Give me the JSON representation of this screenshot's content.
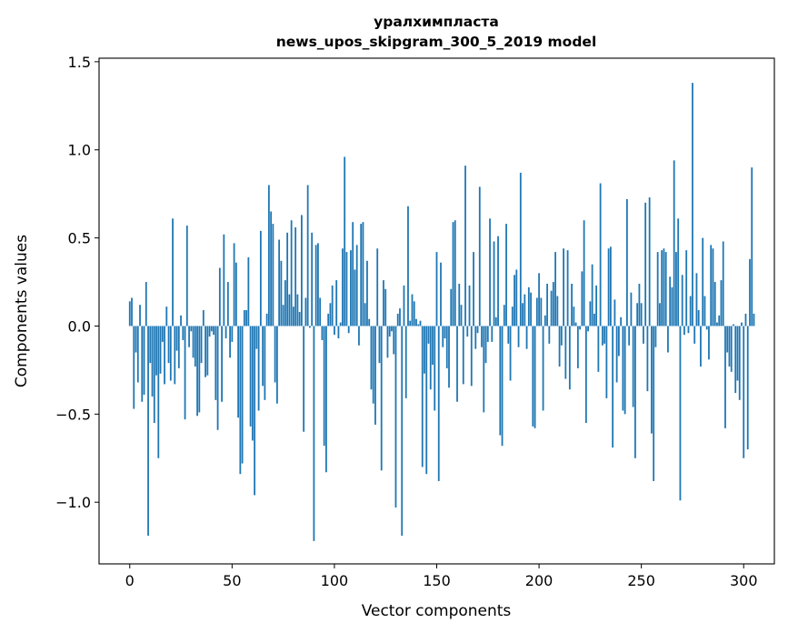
{
  "chart_data": {
    "type": "bar",
    "title_line1": "уралхимпласта",
    "title_line2": "news_upos_skipgram_300_5_2019 model",
    "xlabel": "Vector components",
    "ylabel": "Components values",
    "xlim": [
      -15,
      315
    ],
    "ylim": [
      -1.35,
      1.52
    ],
    "x_ticks": [
      0,
      50,
      100,
      150,
      200,
      250,
      300
    ],
    "x_tick_labels": [
      "0",
      "50",
      "100",
      "150",
      "200",
      "250",
      "300"
    ],
    "y_ticks": [
      -1.0,
      -0.5,
      0.0,
      0.5,
      1.0,
      1.5
    ],
    "y_tick_labels": [
      "−1.0",
      "−0.5",
      "0.0",
      "0.5",
      "1.0",
      "1.5"
    ],
    "bar_color": "#1f77b4",
    "grid": false,
    "values": [
      0.14,
      0.16,
      -0.47,
      -0.15,
      -0.32,
      0.12,
      -0.43,
      -0.39,
      0.25,
      -1.19,
      -0.21,
      -0.4,
      -0.55,
      -0.28,
      -0.75,
      -0.27,
      -0.09,
      -0.33,
      0.11,
      -0.21,
      -0.31,
      0.61,
      -0.33,
      -0.14,
      -0.24,
      0.06,
      -0.08,
      -0.53,
      0.57,
      -0.12,
      -0.03,
      -0.18,
      -0.23,
      -0.51,
      -0.49,
      -0.21,
      0.09,
      -0.29,
      -0.28,
      -0.06,
      -0.03,
      -0.05,
      -0.42,
      -0.59,
      0.33,
      -0.43,
      0.52,
      -0.07,
      0.25,
      -0.18,
      -0.09,
      0.47,
      0.36,
      -0.52,
      -0.84,
      -0.78,
      0.09,
      0.09,
      0.39,
      -0.57,
      -0.65,
      -0.96,
      -0.13,
      -0.48,
      0.54,
      -0.34,
      -0.42,
      0.07,
      0.8,
      0.65,
      0.58,
      -0.32,
      -0.44,
      0.49,
      0.37,
      0.12,
      0.26,
      0.53,
      0.18,
      0.6,
      0.11,
      0.56,
      0.18,
      0.08,
      0.63,
      -0.6,
      0.16,
      0.8,
      -0.01,
      0.53,
      -1.22,
      0.46,
      0.47,
      0.16,
      -0.08,
      -0.68,
      -0.83,
      0.07,
      0.13,
      0.23,
      -0.05,
      0.26,
      -0.07,
      0.02,
      0.44,
      0.96,
      0.42,
      -0.04,
      0.43,
      0.59,
      0.32,
      0.46,
      -0.11,
      0.58,
      0.59,
      0.13,
      0.37,
      0.04,
      -0.36,
      -0.44,
      -0.56,
      0.44,
      -0.21,
      -0.82,
      0.26,
      0.21,
      -0.18,
      -0.06,
      -0.03,
      -0.16,
      -1.03,
      0.07,
      0.1,
      -1.19,
      0.23,
      -0.41,
      0.68,
      0.03,
      0.18,
      0.14,
      0.04,
      0.01,
      0.03,
      -0.8,
      -0.27,
      -0.84,
      -0.1,
      -0.36,
      -0.22,
      -0.48,
      0.42,
      -0.88,
      0.36,
      -0.12,
      -0.07,
      -0.24,
      -0.35,
      0.21,
      0.59,
      0.6,
      -0.43,
      0.24,
      0.12,
      -0.33,
      0.91,
      -0.06,
      0.23,
      -0.34,
      0.42,
      -0.13,
      -0.04,
      0.79,
      -0.12,
      -0.49,
      -0.21,
      -0.09,
      0.61,
      -0.09,
      0.48,
      0.05,
      0.51,
      -0.62,
      -0.68,
      0.12,
      0.58,
      -0.1,
      -0.31,
      0.11,
      0.29,
      0.32,
      -0.12,
      0.87,
      0.13,
      0.18,
      -0.13,
      0.22,
      0.19,
      -0.57,
      -0.58,
      0.16,
      0.3,
      0.16,
      -0.48,
      0.06,
      0.24,
      -0.1,
      0.2,
      0.25,
      0.42,
      0.17,
      -0.23,
      -0.11,
      0.44,
      -0.3,
      0.43,
      -0.36,
      0.24,
      0.11,
      0.02,
      -0.24,
      -0.02,
      0.31,
      0.6,
      -0.55,
      -0.03,
      0.14,
      0.35,
      0.07,
      0.23,
      -0.26,
      0.81,
      -0.11,
      -0.1,
      -0.41,
      0.44,
      0.45,
      -0.69,
      0.15,
      -0.32,
      -0.17,
      0.05,
      -0.48,
      -0.5,
      0.72,
      -0.11,
      0.19,
      -0.46,
      -0.75,
      0.13,
      0.24,
      0.13,
      -0.1,
      0.7,
      -0.37,
      0.73,
      -0.61,
      -0.88,
      -0.12,
      0.42,
      0.13,
      0.43,
      0.44,
      0.42,
      -0.15,
      0.28,
      0.22,
      0.94,
      0.42,
      0.61,
      -0.99,
      0.29,
      -0.05,
      0.43,
      -0.04,
      0.17,
      1.38,
      -0.1,
      0.3,
      0.09,
      -0.23,
      0.5,
      0.17,
      -0.02,
      -0.19,
      0.46,
      0.44,
      0.25,
      0.02,
      0.06,
      0.26,
      0.48,
      -0.58,
      -0.15,
      -0.23,
      -0.26,
      0.01,
      -0.38,
      -0.31,
      -0.42,
      0.02,
      -0.75,
      0.07,
      -0.7,
      0.38,
      0.9,
      0.07
    ]
  }
}
